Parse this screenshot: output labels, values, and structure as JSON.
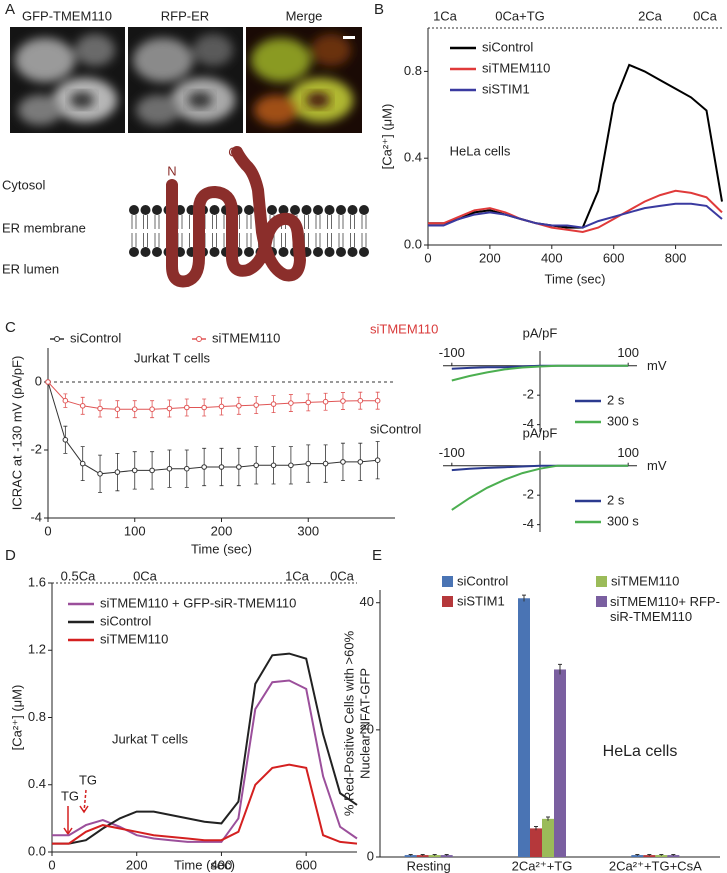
{
  "panel_labels": [
    "A",
    "B",
    "C",
    "D",
    "E"
  ],
  "panel_a": {
    "image_titles": [
      "GFP-TMEM110",
      "RFP-ER",
      "Merge"
    ],
    "diagram_labels": [
      "Cytosol",
      "ER membrane",
      "ER lumen"
    ],
    "termini": [
      "N",
      "C"
    ]
  },
  "chart_data": [
    {
      "type": "line",
      "ylabel": "[Ca²⁺] (μM)",
      "xlabel": "Time (sec)",
      "protocol": [
        "1Ca",
        "0Ca+TG",
        "2Ca",
        "0Ca"
      ],
      "annotation": "HeLa cells",
      "x": [
        0,
        50,
        100,
        150,
        200,
        250,
        300,
        350,
        400,
        450,
        500,
        550,
        600,
        650,
        700,
        750,
        800,
        850,
        900,
        950
      ],
      "xlim": [
        0,
        950
      ],
      "xticks": [
        0,
        200,
        400,
        600,
        800
      ],
      "ylim": [
        0,
        1.0
      ],
      "yticks": [
        {
          "value": 0,
          "label": "0.0"
        },
        0.4,
        0.8
      ],
      "series": [
        {
          "name": "siControl",
          "color": "#000000",
          "values": [
            0.1,
            0.1,
            0.12,
            0.15,
            0.16,
            0.14,
            0.12,
            0.1,
            0.09,
            0.08,
            0.08,
            0.25,
            0.65,
            0.83,
            0.8,
            0.76,
            0.72,
            0.68,
            0.62,
            0.2
          ]
        },
        {
          "name": "siTMEM110",
          "color": "#e03a3a",
          "values": [
            0.1,
            0.1,
            0.13,
            0.16,
            0.17,
            0.15,
            0.12,
            0.1,
            0.08,
            0.07,
            0.06,
            0.08,
            0.12,
            0.16,
            0.2,
            0.23,
            0.25,
            0.24,
            0.22,
            0.15
          ]
        },
        {
          "name": "siSTIM1",
          "color": "#3a3aa0",
          "values": [
            0.09,
            0.09,
            0.12,
            0.14,
            0.15,
            0.14,
            0.12,
            0.1,
            0.09,
            0.09,
            0.08,
            0.11,
            0.13,
            0.15,
            0.17,
            0.18,
            0.19,
            0.19,
            0.18,
            0.12
          ]
        }
      ]
    },
    {
      "type": "line",
      "style": "errorbar",
      "ylabel": "ICRAC at -130 mV (pA/pF)",
      "xlabel": "Time (sec)",
      "annotation": "Jurkat T cells",
      "x": [
        0,
        20,
        40,
        60,
        80,
        100,
        120,
        140,
        160,
        180,
        200,
        220,
        240,
        260,
        280,
        300,
        320,
        340,
        360,
        380
      ],
      "xlim": [
        0,
        400
      ],
      "xticks": [
        0,
        100,
        200,
        300
      ],
      "ylim": [
        -4,
        1
      ],
      "yticks": [
        -4,
        -2,
        0
      ],
      "series": [
        {
          "name": "siControl",
          "color": "#333333",
          "values": [
            0,
            -1.7,
            -2.4,
            -2.7,
            -2.65,
            -2.6,
            -2.6,
            -2.55,
            -2.55,
            -2.5,
            -2.5,
            -2.5,
            -2.45,
            -2.45,
            -2.45,
            -2.4,
            -2.4,
            -2.35,
            -2.35,
            -2.3
          ],
          "errors": [
            0,
            0.4,
            0.5,
            0.55,
            0.55,
            0.55,
            0.55,
            0.55,
            0.55,
            0.55,
            0.55,
            0.55,
            0.55,
            0.55,
            0.55,
            0.55,
            0.55,
            0.55,
            0.55,
            0.55
          ]
        },
        {
          "name": "siTMEM110",
          "color": "#e05555",
          "values": [
            0,
            -0.55,
            -0.7,
            -0.78,
            -0.8,
            -0.8,
            -0.8,
            -0.78,
            -0.75,
            -0.75,
            -0.72,
            -0.7,
            -0.68,
            -0.65,
            -0.62,
            -0.6,
            -0.58,
            -0.56,
            -0.55,
            -0.55
          ],
          "errors": [
            0,
            0.2,
            0.25,
            0.25,
            0.25,
            0.25,
            0.25,
            0.25,
            0.25,
            0.25,
            0.25,
            0.25,
            0.25,
            0.25,
            0.25,
            0.25,
            0.25,
            0.25,
            0.25,
            0.25
          ]
        }
      ]
    },
    {
      "type": "line",
      "style": "iv",
      "title": "siTMEM110",
      "title_color": "#d93a3a",
      "ylabel": "pA/pF",
      "xlabel": "mV",
      "x": [
        -100,
        -80,
        -60,
        -40,
        -20,
        0,
        20,
        40,
        60,
        80,
        100
      ],
      "xlim": [
        -110,
        110
      ],
      "xticks": [
        -100,
        100
      ],
      "ylim": [
        -4.5,
        1
      ],
      "yticks": [
        -4,
        -2
      ],
      "series": [
        {
          "name": "2 s",
          "color": "#2b3a8f",
          "values": [
            -0.2,
            -0.15,
            -0.1,
            -0.1,
            -0.05,
            0,
            0,
            0,
            0,
            0,
            0
          ]
        },
        {
          "name": "300 s",
          "color": "#4caf50",
          "values": [
            -1.0,
            -0.7,
            -0.45,
            -0.25,
            -0.12,
            -0.05,
            0,
            0,
            0,
            0,
            0
          ]
        }
      ]
    },
    {
      "type": "line",
      "style": "iv",
      "title": "siControl",
      "title_color": "#222222",
      "ylabel": "pA/pF",
      "xlabel": "mV",
      "x": [
        -100,
        -80,
        -60,
        -40,
        -20,
        0,
        20,
        40,
        60,
        80,
        100
      ],
      "xlim": [
        -110,
        110
      ],
      "xticks": [
        -100,
        100
      ],
      "ylim": [
        -4.5,
        1
      ],
      "yticks": [
        -4,
        -2
      ],
      "series": [
        {
          "name": "2 s",
          "color": "#2b3a8f",
          "values": [
            -0.3,
            -0.2,
            -0.15,
            -0.1,
            -0.05,
            0,
            0,
            0,
            0,
            0,
            0
          ]
        },
        {
          "name": "300 s",
          "color": "#4caf50",
          "values": [
            -3.0,
            -2.2,
            -1.5,
            -0.95,
            -0.5,
            -0.2,
            0,
            0,
            0,
            0,
            0
          ]
        }
      ]
    },
    {
      "type": "line",
      "ylabel": "[Ca²⁺] (μM)",
      "xlabel": "Time (sec)",
      "protocol": [
        "0.5Ca",
        "0Ca",
        "1Ca",
        "0Ca"
      ],
      "annotation": "Jurkat T cells",
      "arrows": [
        "TG",
        "TG"
      ],
      "x": [
        0,
        40,
        80,
        120,
        160,
        200,
        240,
        280,
        320,
        360,
        400,
        440,
        480,
        520,
        560,
        600,
        640,
        680,
        720
      ],
      "xlim": [
        0,
        720
      ],
      "xticks": [
        0,
        200,
        400,
        600
      ],
      "ylim": [
        0,
        1.6
      ],
      "yticks": [
        {
          "value": 0,
          "label": "0.0"
        },
        0.4,
        0.8,
        1.2,
        1.6
      ],
      "series": [
        {
          "name": "siTMEM110 + GFP-siR-TMEM110",
          "color": "#9b4f9b",
          "values": [
            0.1,
            0.1,
            0.16,
            0.19,
            0.15,
            0.1,
            0.08,
            0.07,
            0.06,
            0.06,
            0.06,
            0.2,
            0.85,
            1.01,
            1.02,
            0.97,
            0.45,
            0.15,
            0.08
          ]
        },
        {
          "name": "siControl",
          "color": "#222222",
          "values": [
            0.05,
            0.05,
            0.07,
            0.14,
            0.2,
            0.24,
            0.24,
            0.22,
            0.2,
            0.18,
            0.17,
            0.3,
            1.0,
            1.17,
            1.18,
            1.15,
            0.7,
            0.35,
            0.28
          ]
        },
        {
          "name": "siTMEM110",
          "color": "#d42020",
          "values": [
            0.05,
            0.05,
            0.12,
            0.16,
            0.14,
            0.12,
            0.1,
            0.09,
            0.08,
            0.07,
            0.07,
            0.12,
            0.4,
            0.5,
            0.52,
            0.5,
            0.1,
            0.06,
            0.05
          ]
        }
      ]
    },
    {
      "type": "bar",
      "ylabel": [
        "% Red-Positive Cells with >60%",
        "Nuclear NFAT-GFP"
      ],
      "annotation": "HeLa cells",
      "categories": [
        "Resting",
        "2Ca²⁺+TG",
        "2Ca²⁺+TG+CsA"
      ],
      "ylim": [
        0,
        42
      ],
      "yticks": [
        0,
        20,
        40
      ],
      "series": [
        {
          "name": "siControl",
          "color": "#4a74b4",
          "values": [
            0.3,
            40.7,
            0.3
          ],
          "errors": [
            0.1,
            0.5,
            0.1
          ]
        },
        {
          "name": "siSTIM1",
          "color": "#b5383b",
          "values": [
            0.3,
            4.5,
            0.3
          ],
          "errors": [
            0.1,
            0.3,
            0.1
          ]
        },
        {
          "name": "siTMEM110",
          "color": "#9bbb59",
          "values": [
            0.3,
            6,
            0.3
          ],
          "errors": [
            0.1,
            0.3,
            0.1
          ]
        },
        {
          "name": "siTMEM110+ RFP-siR-TMEM110",
          "color": "#7a5fa0",
          "values": [
            0.3,
            29.5,
            0.3
          ],
          "errors": [
            0.1,
            0.8,
            0.1
          ]
        }
      ]
    }
  ]
}
